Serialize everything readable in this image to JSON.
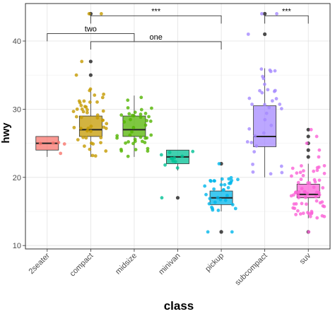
{
  "chart_data": {
    "type": "boxplot",
    "xlabel": "class",
    "ylabel": "hwy",
    "ylim": [
      9.5,
      45.5
    ],
    "yticks": [
      10,
      20,
      30,
      40
    ],
    "grid": true,
    "legend": "none",
    "categories": [
      "2seater",
      "compact",
      "midsize",
      "minivan",
      "pickup",
      "subcompact",
      "suv"
    ],
    "colors": [
      "#F8766D",
      "#C49A00",
      "#53B400",
      "#00C094",
      "#00B6EB",
      "#A58AFF",
      "#FB61D7"
    ],
    "boxes": [
      {
        "class": "2seater",
        "min": 23,
        "q1": 24,
        "median": 25,
        "q3": 26,
        "max": 26,
        "outliers": []
      },
      {
        "class": "compact",
        "min": 23,
        "q1": 26,
        "median": 27,
        "q3": 29,
        "max": 33,
        "outliers": [
          35,
          37,
          44,
          44
        ]
      },
      {
        "class": "midsize",
        "min": 23,
        "q1": 26,
        "median": 27,
        "q3": 29,
        "max": 32,
        "outliers": []
      },
      {
        "class": "minivan",
        "min": 21,
        "q1": 22,
        "median": 23,
        "q3": 24,
        "max": 24,
        "outliers": [
          17
        ]
      },
      {
        "class": "pickup",
        "min": 15,
        "q1": 16,
        "median": 17,
        "q3": 18,
        "max": 20,
        "outliers": [
          12,
          12,
          22
        ]
      },
      {
        "class": "subcompact",
        "min": 20,
        "q1": 24.5,
        "median": 26,
        "q3": 30.5,
        "max": 36,
        "outliers": [
          41,
          44,
          44
        ]
      },
      {
        "class": "suv",
        "min": 14,
        "q1": 17,
        "median": 17.5,
        "q3": 19,
        "max": 22,
        "outliers": [
          12,
          23,
          24,
          25,
          26,
          27
        ]
      }
    ],
    "comparisons": [
      {
        "from": "2seater",
        "to": "midsize",
        "label": "two",
        "y": 41.1
      },
      {
        "from": "compact",
        "to": "pickup",
        "label": "one",
        "y": 39.9
      },
      {
        "from": "compact",
        "to": "pickup",
        "label": "***",
        "y": 43.7
      },
      {
        "from": "subcompact",
        "to": "suv",
        "label": "***",
        "y": 43.7
      }
    ]
  }
}
